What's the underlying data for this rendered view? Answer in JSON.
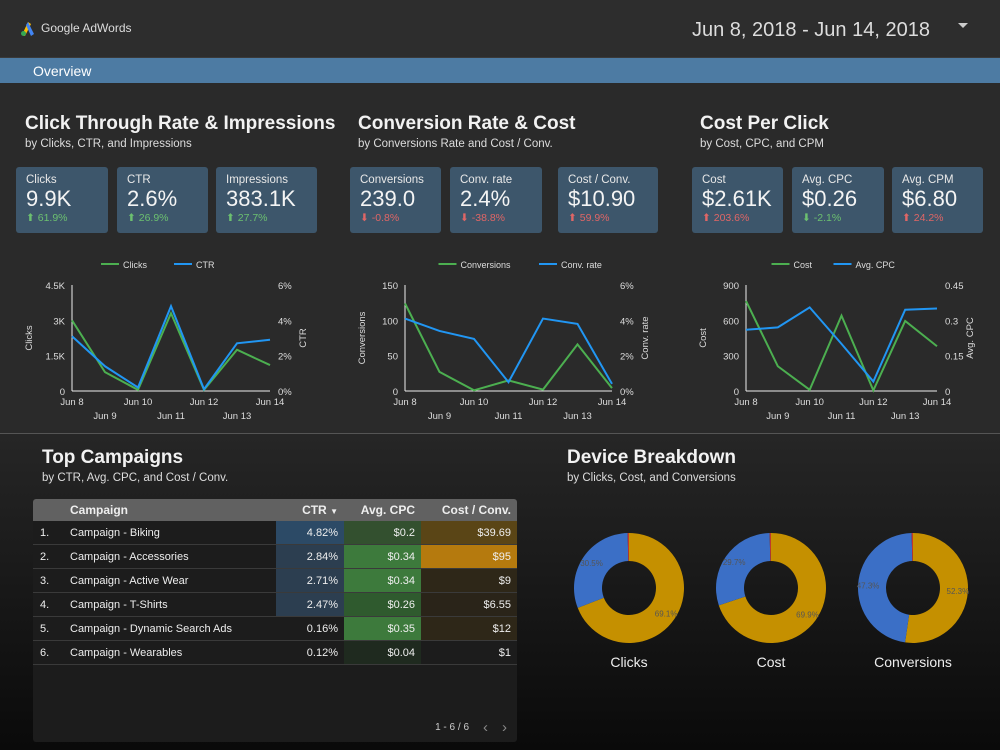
{
  "header": {
    "logo_text": "Google AdWords",
    "date_range": "Jun 8, 2018 - Jun 14, 2018"
  },
  "nav": {
    "tab": "Overview"
  },
  "sections": [
    {
      "title": "Click Through Rate & Impressions",
      "subtitle": "by Clicks, CTR, and Impressions",
      "cards": [
        {
          "label": "Clicks",
          "value": "9.9K",
          "delta": "61.9%",
          "dir": "up",
          "color": "#6cc070"
        },
        {
          "label": "CTR",
          "value": "2.6%",
          "delta": "26.9%",
          "dir": "up",
          "color": "#6cc070"
        },
        {
          "label": "Impressions",
          "value": "383.1K",
          "delta": "27.7%",
          "dir": "up",
          "color": "#6cc070"
        }
      ]
    },
    {
      "title": "Conversion Rate & Cost",
      "subtitle": "by Conversions Rate and Cost / Conv.",
      "cards": [
        {
          "label": "Conversions",
          "value": "239.0",
          "delta": "-0.8%",
          "dir": "down",
          "color": "#e06666"
        },
        {
          "label": "Conv. rate",
          "value": "2.4%",
          "delta": "-38.8%",
          "dir": "down",
          "color": "#e06666"
        },
        {
          "label": "Cost / Conv.",
          "value": "$10.90",
          "delta": "59.9%",
          "dir": "up",
          "color": "#e06666"
        }
      ]
    },
    {
      "title": "Cost Per Click",
      "subtitle": "by Cost, CPC, and CPM",
      "cards": [
        {
          "label": "Cost",
          "value": "$2.61K",
          "delta": "203.6%",
          "dir": "up",
          "color": "#e06666"
        },
        {
          "label": "Avg. CPC",
          "value": "$0.26",
          "delta": "-2.1%",
          "dir": "down",
          "color": "#6cc070"
        },
        {
          "label": "Avg. CPM",
          "value": "$6.80",
          "delta": "24.2%",
          "dir": "up",
          "color": "#e06666"
        }
      ]
    }
  ],
  "chart_data": [
    {
      "type": "line",
      "categories": [
        "Jun 8",
        "Jun 9",
        "Jun 10",
        "Jun 11",
        "Jun 12",
        "Jun 13",
        "Jun 14"
      ],
      "legend": "top",
      "ylabel": "Clicks",
      "y2label": "CTR",
      "ylim": [
        0,
        4500
      ],
      "y2lim": [
        0,
        6
      ],
      "yticks": [
        "0",
        "1.5K",
        "3K",
        "4.5K"
      ],
      "y2ticks": [
        "0%",
        "2%",
        "4%",
        "6%"
      ],
      "series": [
        {
          "name": "Clicks",
          "axis": "left",
          "color": "#4caf50",
          "values": [
            3000,
            800,
            50,
            3300,
            50,
            1750,
            1100
          ]
        },
        {
          "name": "CTR",
          "axis": "right",
          "color": "#2196f3",
          "values": [
            3.1,
            1.4,
            0.2,
            4.8,
            0.1,
            2.7,
            2.9
          ]
        }
      ]
    },
    {
      "type": "line",
      "categories": [
        "Jun 8",
        "Jun 9",
        "Jun 10",
        "Jun 11",
        "Jun 12",
        "Jun 13",
        "Jun 14"
      ],
      "legend": "top",
      "ylabel": "Conversions",
      "y2label": "Conv. rate",
      "ylim": [
        0,
        150
      ],
      "y2lim": [
        0,
        6
      ],
      "yticks": [
        "0",
        "50",
        "100",
        "150"
      ],
      "y2ticks": [
        "0%",
        "2%",
        "4%",
        "6%"
      ],
      "series": [
        {
          "name": "Conversions",
          "axis": "left",
          "color": "#4caf50",
          "values": [
            124,
            27,
            1,
            15,
            2,
            66,
            4
          ]
        },
        {
          "name": "Conv. rate",
          "axis": "right",
          "color": "#2196f3",
          "values": [
            4.1,
            3.4,
            2.95,
            0.5,
            4.1,
            3.8,
            0.4
          ]
        }
      ]
    },
    {
      "type": "line",
      "categories": [
        "Jun 8",
        "Jun 9",
        "Jun 10",
        "Jun 11",
        "Jun 12",
        "Jun 13",
        "Jun 14"
      ],
      "legend": "top",
      "ylabel": "Cost",
      "y2label": "Avg. CPC",
      "ylim": [
        0,
        900
      ],
      "y2lim": [
        0,
        0.45
      ],
      "yticks": [
        "0",
        "300",
        "600",
        "900"
      ],
      "y2ticks": [
        "0",
        "0.15",
        "0.3",
        "0.45"
      ],
      "series": [
        {
          "name": "Cost",
          "axis": "left",
          "color": "#4caf50",
          "values": [
            765,
            210,
            10,
            640,
            5,
            595,
            380
          ]
        },
        {
          "name": "Avg. CPC",
          "axis": "right",
          "color": "#2196f3",
          "values": [
            0.26,
            0.27,
            0.355,
            0.2,
            0.04,
            0.345,
            0.35
          ]
        }
      ]
    },
    {
      "type": "pie",
      "donut": true,
      "label": "Clicks",
      "slices": [
        {
          "value": 69.1,
          "label": "69.1%",
          "color": "#c59000"
        },
        {
          "value": 30.5,
          "label": "30.5%",
          "color": "#3b6fc6"
        },
        {
          "value": 0.4,
          "color": "#c0392b"
        }
      ]
    },
    {
      "type": "pie",
      "donut": true,
      "label": "Cost",
      "slices": [
        {
          "value": 69.9,
          "label": "69.9%",
          "color": "#c59000"
        },
        {
          "value": 29.7,
          "label": "29.7%",
          "color": "#3b6fc6"
        },
        {
          "value": 0.4,
          "color": "#c0392b"
        }
      ]
    },
    {
      "type": "pie",
      "donut": true,
      "label": "Conversions",
      "slices": [
        {
          "value": 52.3,
          "label": "52.3%",
          "color": "#c59000"
        },
        {
          "value": 47.3,
          "label": "47.3%",
          "color": "#3b6fc6"
        },
        {
          "value": 0.4,
          "color": "#c0392b"
        }
      ]
    }
  ],
  "campaigns": {
    "title": "Top Campaigns",
    "subtitle": "by CTR, Avg. CPC, and Cost / Conv.",
    "headers": [
      "",
      "Campaign",
      "CTR",
      "Avg. CPC",
      "Cost / Conv."
    ],
    "sort": "CTR descending",
    "rows": [
      [
        "1.",
        "Campaign - Biking",
        "4.82%",
        "$0.2",
        "$39.69"
      ],
      [
        "2.",
        "Campaign - Accessories",
        "2.84%",
        "$0.34",
        "$95"
      ],
      [
        "3.",
        "Campaign - Active Wear",
        "2.71%",
        "$0.34",
        "$9"
      ],
      [
        "4.",
        "Campaign - T-Shirts",
        "2.47%",
        "$0.26",
        "$6.55"
      ],
      [
        "5.",
        "Campaign - Dynamic Search Ads",
        "0.16%",
        "$0.35",
        "$12"
      ],
      [
        "6.",
        "Campaign - Wearables",
        "0.12%",
        "$0.04",
        "$1"
      ]
    ],
    "pagination": "1 - 6 / 6"
  },
  "devices": {
    "title": "Device Breakdown",
    "subtitle": "by Clicks, Cost, and Conversions"
  }
}
